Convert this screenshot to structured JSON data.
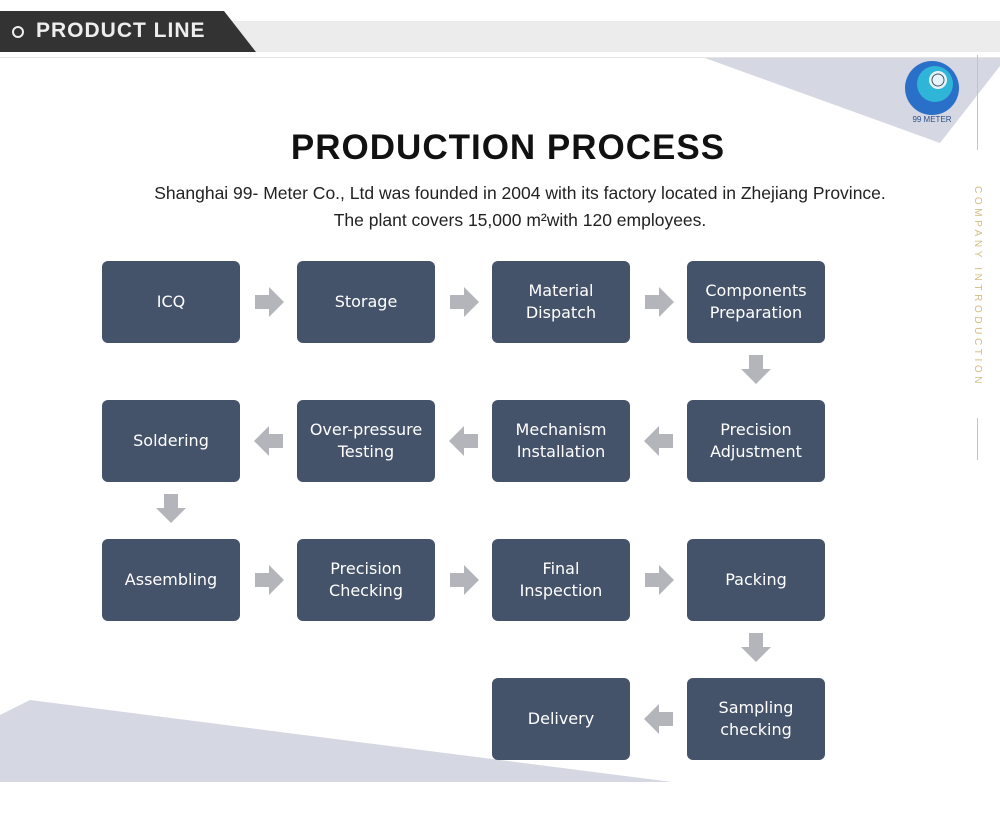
{
  "header": {
    "title": "PRODUCT LINE"
  },
  "logo": {
    "text": "99 METER",
    "color": "#2a7fd0"
  },
  "side_label": "COMPANY INTRODUCTION",
  "main": {
    "title": "PRODUCTION PROCESS",
    "description": "Shanghai 99- Meter Co., Ltd was founded in 2004 with its factory located in Zhejiang Province. The plant covers 15,000 m²with 120 employees."
  },
  "colors": {
    "box": "#44526a",
    "arrow": "#b3b5ba",
    "accent": "#d8c48a"
  },
  "steps": [
    "ICQ",
    "Storage",
    "Material\nDispatch",
    "Components\nPreparation",
    "Precision\nAdjustment",
    "Mechanism\nInstallation",
    "Over-pressure\nTesting",
    "Soldering",
    "Assembling",
    "Precision\nChecking",
    "Final\nInspection",
    "Packing",
    "Sampling\nchecking",
    "Delivery"
  ]
}
